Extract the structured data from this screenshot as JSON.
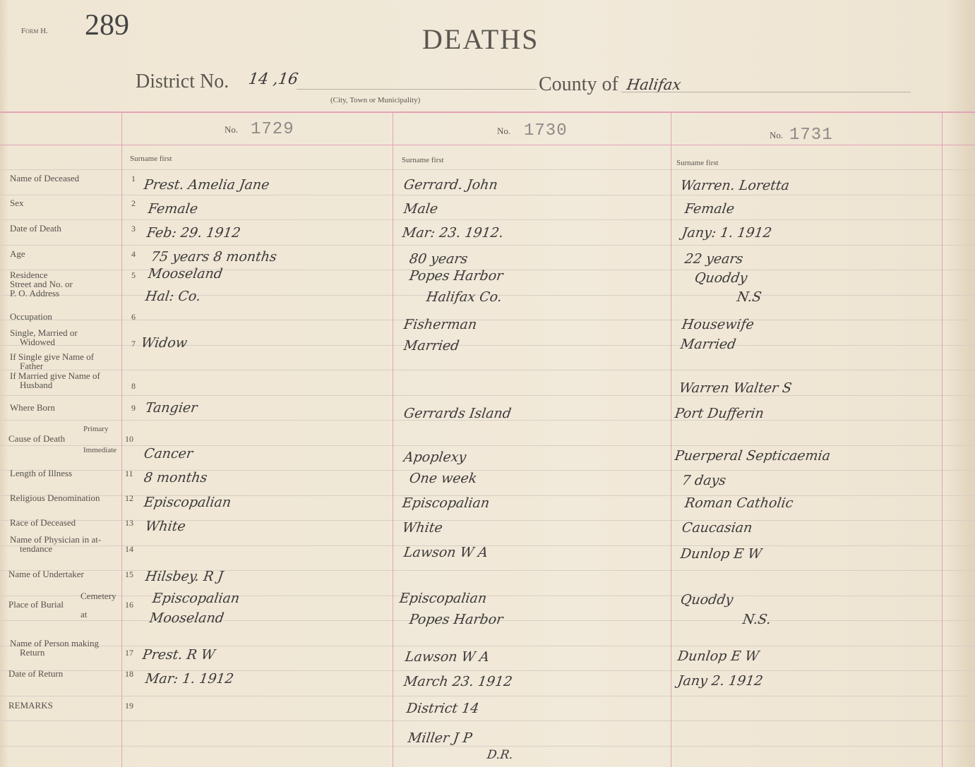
{
  "header": {
    "form_label": "Form H.",
    "page_number": "289",
    "title": "DEATHS",
    "district_label": "District No.",
    "district_value": "14 ,16",
    "municipality_caption": "(City, Town or Municipality)",
    "county_label": "County of",
    "county_value": "Halifax"
  },
  "columns": [
    {
      "no_label": "No.",
      "no_value": "1729",
      "surname_hint": "Surname first"
    },
    {
      "no_label": "No.",
      "no_value": "1730",
      "surname_hint": "Surname first"
    },
    {
      "no_label": "No.",
      "no_value": "1731",
      "surname_hint": "Surname first"
    }
  ],
  "row_labels": {
    "name": "Name of Deceased",
    "sex": "Sex",
    "date": "Date of Death",
    "age": "Age",
    "res1": "Residence",
    "res2": "Street and No. or",
    "res3": "P. O. Address",
    "occ": "Occupation",
    "smw1": "Single, Married or",
    "smw2": "Widowed",
    "fath1": "If Single give Name of",
    "fath2": "Father",
    "husb1": "If Married give Name of",
    "husb2": "Husband",
    "born": "Where Born",
    "cause": "Cause of Death",
    "primary": "Primary",
    "immediate": "Immediate",
    "illness": "Length of Illness",
    "relig": "Religious Denomination",
    "race": "Race of Deceased",
    "phys1": "Name of Physician in at-",
    "phys2": "tendance",
    "under": "Name of Undertaker",
    "burial": "Place of Burial",
    "cemetery": "Cemetery",
    "at": "at",
    "ret1": "Name of Person making",
    "ret2": "Return",
    "dret": "Date of Return",
    "remarks": "REMARKS"
  },
  "row_numbers": [
    "1",
    "2",
    "3",
    "4",
    "5",
    "6",
    "7",
    "8",
    "9",
    "10",
    "11",
    "12",
    "13",
    "14",
    "15",
    "16",
    "17",
    "18",
    "19"
  ],
  "entries": {
    "c1": [
      "Prest. Amelia Jane",
      "Female",
      "Feb: 29. 1912",
      "75 years 8 months",
      "Mooseland",
      "Hal: Co.",
      "Widow",
      "Tangier",
      "Cancer",
      "8 months",
      "Episcopalian",
      "White",
      "Hilsbey. R J",
      "Episcopalian",
      "Mooseland",
      "Prest. R W",
      "Mar: 1. 1912"
    ],
    "c2": [
      "Gerrard. John",
      "Male",
      "Mar: 23. 1912.",
      "80 years",
      "Popes Harbor",
      "Halifax Co.",
      "Fisherman",
      "Married",
      "Gerrards Island",
      "Apoplexy",
      "One week",
      "Episcopalian",
      "White",
      "Lawson W A",
      "Episcopalian",
      "Popes Harbor",
      "Lawson W A",
      "March 23. 1912",
      "District 14",
      "Miller J P",
      "D.R."
    ],
    "c3": [
      "Warren. Loretta",
      "Female",
      "Jany: 1. 1912",
      "22 years",
      "Quoddy",
      "N.S",
      "Housewife",
      "Married",
      "Warren Walter S",
      "Port Dufferin",
      "Puerperal Septicaemia",
      "7 days",
      "Roman Catholic",
      "Caucasian",
      "Dunlop E W",
      "Quoddy",
      "N.S.",
      "Dunlop E W",
      "Jany 2. 1912"
    ]
  },
  "colors": {
    "rule_pink": "#e2a3b6",
    "paper": "#f1e9d9",
    "ink": "#3c3a3a"
  }
}
